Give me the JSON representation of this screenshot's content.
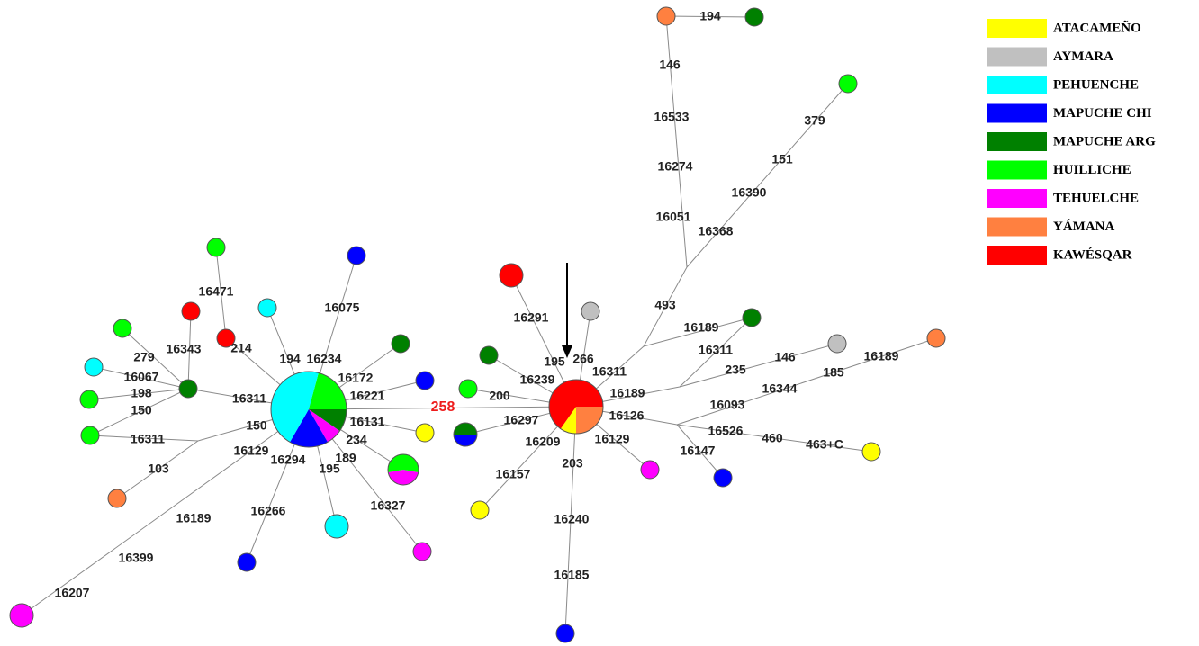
{
  "legend": [
    {
      "label": "ATACAMEÑO",
      "color": "#ffff00"
    },
    {
      "label": "AYMARA",
      "color": "#c0c0c0"
    },
    {
      "label": "PEHUENCHE",
      "color": "#00ffff"
    },
    {
      "label": "MAPUCHE CHI",
      "color": "#0000ff"
    },
    {
      "label": "MAPUCHE ARG",
      "color": "#008000"
    },
    {
      "label": "HUILLICHE",
      "color": "#00ff00"
    },
    {
      "label": "TEHUELCHE",
      "color": "#ff00ff"
    },
    {
      "label": "YÁMANA",
      "color": "#ff8040"
    },
    {
      "label": "KAWÉSQAR",
      "color": "#ff0000"
    }
  ],
  "edge_labels": [
    "16471",
    "214",
    "279",
    "16343",
    "16067",
    "198",
    "150",
    "16311",
    "16311",
    "150",
    "103",
    "16129",
    "16189",
    "16399",
    "16207",
    "194",
    "16075",
    "16234",
    "16172",
    "16221",
    "16131",
    "234",
    "189",
    "16327",
    "195",
    "16294",
    "16266",
    "258",
    "16291",
    "195",
    "266",
    "16239",
    "200",
    "16297",
    "16209",
    "16157",
    "203",
    "16240",
    "16185",
    "16129",
    "16311",
    "493",
    "146",
    "16533",
    "16274",
    "16051",
    "194",
    "16368",
    "16390",
    "151",
    "379",
    "16189",
    "16189",
    "16311",
    "235",
    "146",
    "16126",
    "16093",
    "16344",
    "185",
    "16189",
    "16526",
    "460",
    "463+C",
    "16147"
  ]
}
